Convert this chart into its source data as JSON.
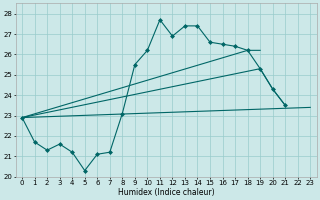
{
  "xlabel": "Humidex (Indice chaleur)",
  "xlim": [
    -0.5,
    23.5
  ],
  "ylim": [
    20,
    28.5
  ],
  "yticks": [
    20,
    21,
    22,
    23,
    24,
    25,
    26,
    27,
    28
  ],
  "xticks": [
    0,
    1,
    2,
    3,
    4,
    5,
    6,
    7,
    8,
    9,
    10,
    11,
    12,
    13,
    14,
    15,
    16,
    17,
    18,
    19,
    20,
    21,
    22,
    23
  ],
  "background_color": "#cce8e8",
  "grid_color": "#99cccc",
  "line_color": "#006666",
  "curve": {
    "x": [
      0,
      1,
      2,
      3,
      4,
      5,
      6,
      7,
      8,
      9,
      10,
      11,
      12,
      13,
      14,
      15,
      16,
      17,
      18,
      19,
      20,
      21
    ],
    "y": [
      22.9,
      21.7,
      21.3,
      21.6,
      21.2,
      20.3,
      21.1,
      21.2,
      23.1,
      25.5,
      26.2,
      27.7,
      26.9,
      27.4,
      27.4,
      26.6,
      26.5,
      26.4,
      26.2,
      25.3,
      24.3,
      23.5
    ]
  },
  "line_low": {
    "x": [
      0,
      23
    ],
    "y": [
      22.9,
      23.4
    ]
  },
  "line_mid": {
    "x": [
      0,
      19,
      20,
      21
    ],
    "y": [
      22.9,
      25.3,
      24.3,
      23.5
    ]
  },
  "line_high": {
    "x": [
      0,
      18,
      19
    ],
    "y": [
      22.9,
      26.2,
      26.2
    ]
  }
}
